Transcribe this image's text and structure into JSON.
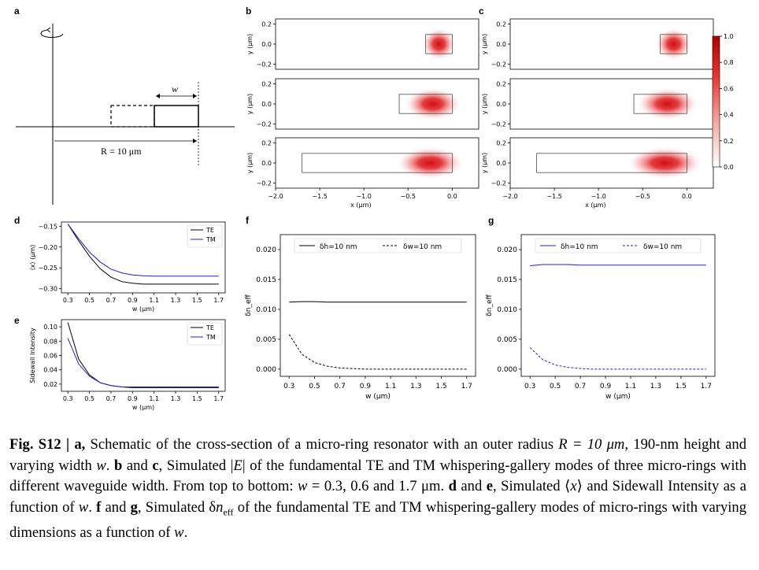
{
  "panels": {
    "a": {
      "letter": "a",
      "w_label": "w",
      "r_label": "R = 10 μm"
    },
    "b": {
      "letter": "b"
    },
    "c": {
      "letter": "c"
    },
    "d": {
      "letter": "d"
    },
    "e": {
      "letter": "e"
    },
    "f": {
      "letter": "f"
    },
    "g": {
      "letter": "g"
    }
  },
  "colorbar": {
    "ticks": [
      "1.0",
      "0.8",
      "0.6",
      "0.4",
      "0.2",
      "0.0"
    ],
    "color": "#d7191c"
  },
  "caption": {
    "fig": "Fig. S12 | ",
    "a_bold": "a,",
    "p1": " Schematic of the cross-section of a micro-ring resonator with an outer radius ",
    "R_eq": "R = 10 μm",
    "p2": ", 190-nm height and varying width ",
    "w1": "w",
    "p3": ". ",
    "b_bold": "b",
    "and1": " and ",
    "c_bold": "c",
    "p4": ", Simulated |",
    "E": "E",
    "p5": "| of the fundamental TE and TM whispering-gallery modes of three micro-rings with different waveguide width. From top to bottom: ",
    "w2": "w",
    "p6": " = 0.3, 0.6 and 1.7 μm. ",
    "d_bold": "d",
    "and2": " and ",
    "e_bold": "e",
    "p7": ", Simulated ⟨",
    "x": "x",
    "p8": "⟩ and Sidewall Intensity as a function of ",
    "w3": "w",
    "p9": ". ",
    "f_bold": "f",
    "and3": " and ",
    "g_bold": "g",
    "p10": ", Simulated δ",
    "n": "n",
    "eff": "eff",
    "p11": " of the fundamental TE and TM whispering-gallery modes of micro-rings with varying dimensions as a function of ",
    "w4": "w",
    "p12": "."
  },
  "chart_data": [
    {
      "id": "b",
      "type": "heatmap",
      "xlabel": "x (μm)",
      "ylabel": "y (μm)",
      "xticks": [
        "−2.0",
        "−1.5",
        "−1.0",
        "−0.5",
        "0.0"
      ],
      "yticks": [
        "0.2",
        "0.0",
        "−0.2"
      ],
      "xlim": [
        -2.0,
        0.3
      ],
      "ylim": [
        -0.25,
        0.25
      ],
      "rows": [
        {
          "w": 0.3,
          "center_x": -0.15,
          "spread_x": 0.12
        },
        {
          "w": 0.6,
          "center_x": -0.22,
          "spread_x": 0.2
        },
        {
          "w": 1.7,
          "center_x": -0.25,
          "spread_x": 0.24
        }
      ]
    },
    {
      "id": "c",
      "type": "heatmap",
      "xlabel": "x (μm)",
      "ylabel": "y (μm)",
      "xticks": [
        "−2.0",
        "−1.5",
        "−1.0",
        "−0.5",
        "0.0"
      ],
      "yticks": [
        "0.2",
        "0.0",
        "−0.2"
      ],
      "xlim": [
        -2.0,
        0.3
      ],
      "ylim": [
        -0.25,
        0.25
      ],
      "rows": [
        {
          "w": 0.3,
          "center_x": -0.15,
          "spread_x": 0.13
        },
        {
          "w": 0.6,
          "center_x": -0.22,
          "spread_x": 0.22
        },
        {
          "w": 1.7,
          "center_x": -0.25,
          "spread_x": 0.27
        }
      ]
    },
    {
      "id": "d",
      "type": "line",
      "xlabel": "w (μm)",
      "ylabel": "⟨x⟩ (μm)",
      "xticks": [
        "0.3",
        "0.5",
        "0.7",
        "0.9",
        "1.1",
        "1.3",
        "1.5",
        "1.7"
      ],
      "yticks": [
        "−0.15",
        "−0.20",
        "−0.25",
        "−0.30"
      ],
      "xlim": [
        0.24,
        1.76
      ],
      "ylim": [
        -0.31,
        -0.14
      ],
      "x": [
        0.3,
        0.4,
        0.5,
        0.6,
        0.7,
        0.8,
        0.9,
        1.0,
        1.1,
        1.3,
        1.5,
        1.7
      ],
      "series": [
        {
          "name": "TE",
          "color": "#000000",
          "values": [
            -0.145,
            -0.185,
            -0.222,
            -0.252,
            -0.272,
            -0.283,
            -0.287,
            -0.289,
            -0.289,
            -0.289,
            -0.289,
            -0.289
          ]
        },
        {
          "name": "TM",
          "color": "#2020d0",
          "values": [
            -0.145,
            -0.18,
            -0.212,
            -0.236,
            -0.253,
            -0.262,
            -0.267,
            -0.269,
            -0.27,
            -0.27,
            -0.27,
            -0.27
          ]
        }
      ],
      "legend": "top-right"
    },
    {
      "id": "e",
      "type": "line",
      "xlabel": "w (μm)",
      "ylabel": "Sidewall Intensity",
      "xticks": [
        "0.3",
        "0.5",
        "0.7",
        "0.9",
        "1.1",
        "1.3",
        "1.5",
        "1.7"
      ],
      "yticks": [
        "0.10",
        "0.08",
        "0.06",
        "0.04",
        "0.02"
      ],
      "xlim": [
        0.24,
        1.76
      ],
      "ylim": [
        0.01,
        0.11
      ],
      "x": [
        0.3,
        0.4,
        0.5,
        0.6,
        0.7,
        0.8,
        0.9,
        1.0,
        1.1,
        1.3,
        1.5,
        1.7
      ],
      "series": [
        {
          "name": "TE",
          "color": "#000000",
          "values": [
            0.106,
            0.055,
            0.033,
            0.022,
            0.018,
            0.016,
            0.015,
            0.015,
            0.015,
            0.015,
            0.015,
            0.015
          ]
        },
        {
          "name": "TM",
          "color": "#2020d0",
          "values": [
            0.084,
            0.048,
            0.031,
            0.022,
            0.018,
            0.016,
            0.016,
            0.016,
            0.016,
            0.016,
            0.016,
            0.016
          ]
        }
      ],
      "legend": "top-right"
    },
    {
      "id": "f",
      "type": "line",
      "xlabel": "w (μm)",
      "ylabel": "δn_eff",
      "xticks": [
        "0.3",
        "0.5",
        "0.7",
        "0.9",
        "1.1",
        "1.3",
        "1.5",
        "1.7"
      ],
      "yticks": [
        "0.020",
        "0.015",
        "0.010",
        "0.005",
        "0.000"
      ],
      "xlim": [
        0.23,
        1.77
      ],
      "ylim": [
        -0.0012,
        0.0225
      ],
      "x": [
        0.3,
        0.4,
        0.5,
        0.6,
        0.7,
        0.8,
        0.9,
        1.0,
        1.1,
        1.3,
        1.5,
        1.7
      ],
      "series": [
        {
          "name": "δh=10 nm",
          "color": "#000000",
          "dash": false,
          "values": [
            0.0112,
            0.0113,
            0.0113,
            0.0112,
            0.0112,
            0.0112,
            0.0112,
            0.0112,
            0.0112,
            0.0112,
            0.0112,
            0.0112
          ]
        },
        {
          "name": "δw=10 nm",
          "color": "#000000",
          "dash": true,
          "values": [
            0.0058,
            0.0025,
            0.0011,
            0.0005,
            0.0002,
            0.0001,
            0.0,
            0.0,
            0.0,
            0.0,
            0.0,
            0.0
          ]
        }
      ],
      "legend": "top"
    },
    {
      "id": "g",
      "type": "line",
      "xlabel": "w (μm)",
      "ylabel": "δn_eff",
      "xticks": [
        "0.3",
        "0.5",
        "0.7",
        "0.9",
        "1.1",
        "1.3",
        "1.5",
        "1.7"
      ],
      "yticks": [
        "0.020",
        "0.015",
        "0.010",
        "0.005",
        "0.000"
      ],
      "xlim": [
        0.23,
        1.77
      ],
      "ylim": [
        -0.0012,
        0.0225
      ],
      "x": [
        0.3,
        0.4,
        0.5,
        0.6,
        0.7,
        0.8,
        0.9,
        1.0,
        1.1,
        1.3,
        1.5,
        1.7
      ],
      "series": [
        {
          "name": "δh=10 nm",
          "color": "#2020d0",
          "dash": false,
          "values": [
            0.0173,
            0.0175,
            0.0175,
            0.0175,
            0.0174,
            0.0174,
            0.0174,
            0.0174,
            0.0174,
            0.0174,
            0.0174,
            0.0174
          ]
        },
        {
          "name": "δw=10 nm",
          "color": "#2020d0",
          "dash": true,
          "values": [
            0.0036,
            0.0016,
            0.0007,
            0.0003,
            0.0001,
            0.0,
            0.0,
            0.0,
            0.0,
            0.0,
            0.0,
            0.0
          ]
        }
      ],
      "legend": "top"
    }
  ]
}
